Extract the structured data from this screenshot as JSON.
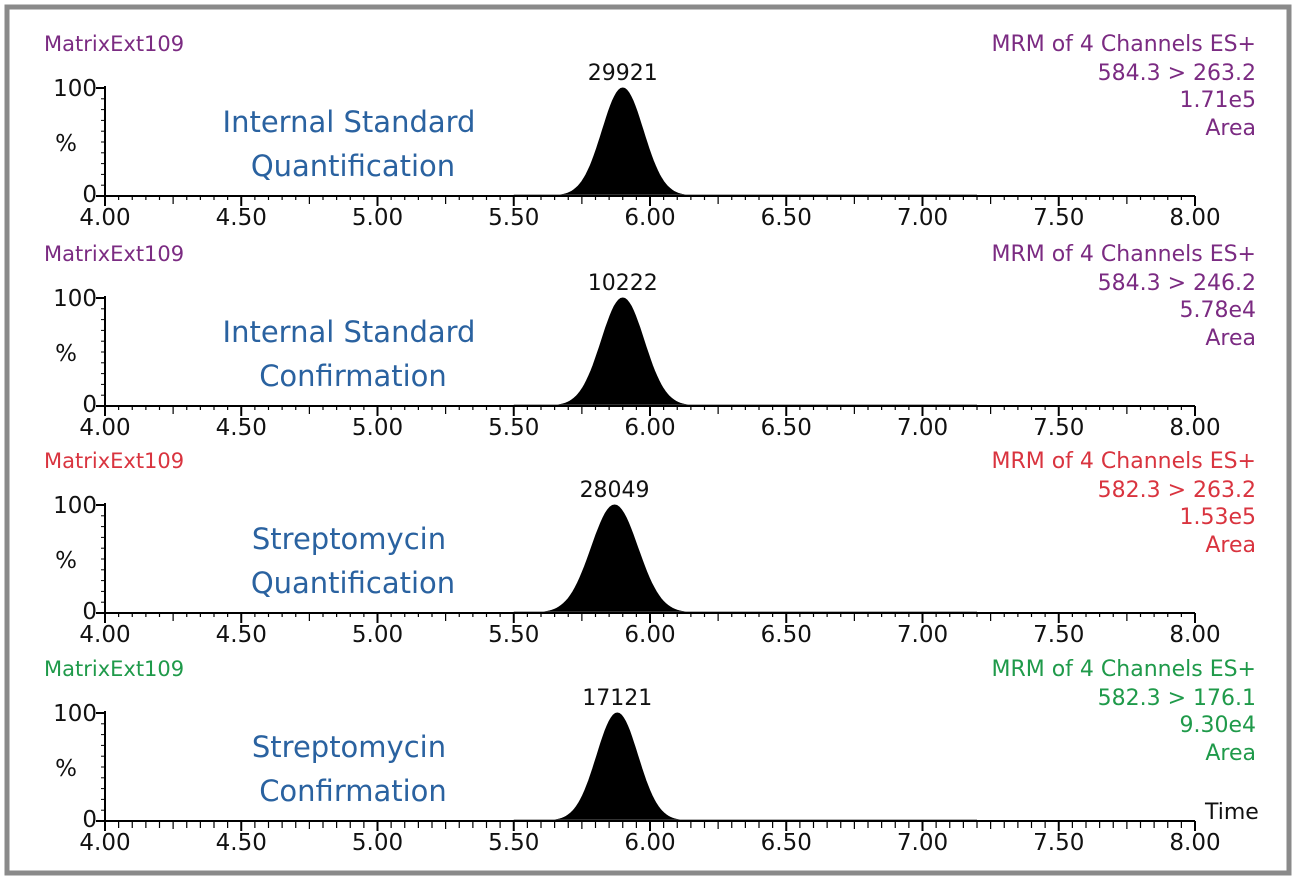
{
  "chart_data": [
    {
      "type": "area",
      "sample": "MatrixExt109",
      "title": [
        "Internal Standard",
        "Quantification"
      ],
      "function": "MRM of 4 Channels ES+",
      "transition": "584.3 > 263.2",
      "intensity": "1.71e5",
      "mode": "Area",
      "color": "#7b2b82",
      "ylabel": "%",
      "yticks": [
        "0",
        "100"
      ],
      "ylim": [
        0,
        100
      ],
      "xlim": [
        4.0,
        8.0
      ],
      "xticks": [
        "4.00",
        "4.50",
        "5.00",
        "5.50",
        "6.00",
        "6.50",
        "7.00",
        "7.50",
        "8.00"
      ],
      "xlabel": "",
      "peak": {
        "retention_time": 5.9,
        "width_sigma": 0.075,
        "height": 100,
        "label": "29921"
      }
    },
    {
      "type": "area",
      "sample": "MatrixExt109",
      "title": [
        "Internal Standard",
        "Confirmation"
      ],
      "function": "MRM of 4 Channels ES+",
      "transition": "584.3 > 246.2",
      "intensity": "5.78e4",
      "mode": "Area",
      "color": "#7b2b82",
      "ylabel": "%",
      "yticks": [
        "0",
        "100"
      ],
      "ylim": [
        0,
        100
      ],
      "xlim": [
        4.0,
        8.0
      ],
      "xticks": [
        "4.00",
        "4.50",
        "5.00",
        "5.50",
        "6.00",
        "6.50",
        "7.00",
        "7.50",
        "8.00"
      ],
      "xlabel": "",
      "peak": {
        "retention_time": 5.9,
        "width_sigma": 0.078,
        "height": 100,
        "label": "10222"
      }
    },
    {
      "type": "area",
      "sample": "MatrixExt109",
      "title": [
        "Streptomycin",
        "Quantification"
      ],
      "function": "MRM of 4 Channels ES+",
      "transition": "582.3 > 263.2",
      "intensity": "1.53e5",
      "mode": "Area",
      "color": "#d9343f",
      "ylabel": "%",
      "yticks": [
        "0",
        "100"
      ],
      "ylim": [
        0,
        100
      ],
      "xlim": [
        4.0,
        8.0
      ],
      "xticks": [
        "4.00",
        "4.50",
        "5.00",
        "5.50",
        "6.00",
        "6.50",
        "7.00",
        "7.50",
        "8.00"
      ],
      "xlabel": "",
      "peak": {
        "retention_time": 5.87,
        "width_sigma": 0.085,
        "height": 100,
        "label": "28049"
      }
    },
    {
      "type": "area",
      "sample": "MatrixExt109",
      "title": [
        "Streptomycin",
        "Confirmation"
      ],
      "function": "MRM of 4 Channels ES+",
      "transition": "582.3 > 176.1",
      "intensity": "9.30e4",
      "mode": "Area",
      "color": "#1f9a4a",
      "ylabel": "%",
      "yticks": [
        "0",
        "100"
      ],
      "ylim": [
        0,
        100
      ],
      "xlim": [
        4.0,
        8.0
      ],
      "xticks": [
        "4.00",
        "4.50",
        "5.00",
        "5.50",
        "6.00",
        "6.50",
        "7.00",
        "7.50",
        "8.00"
      ],
      "xlabel": "Time",
      "peak": {
        "retention_time": 5.88,
        "width_sigma": 0.075,
        "height": 100,
        "label": "17121"
      }
    }
  ]
}
